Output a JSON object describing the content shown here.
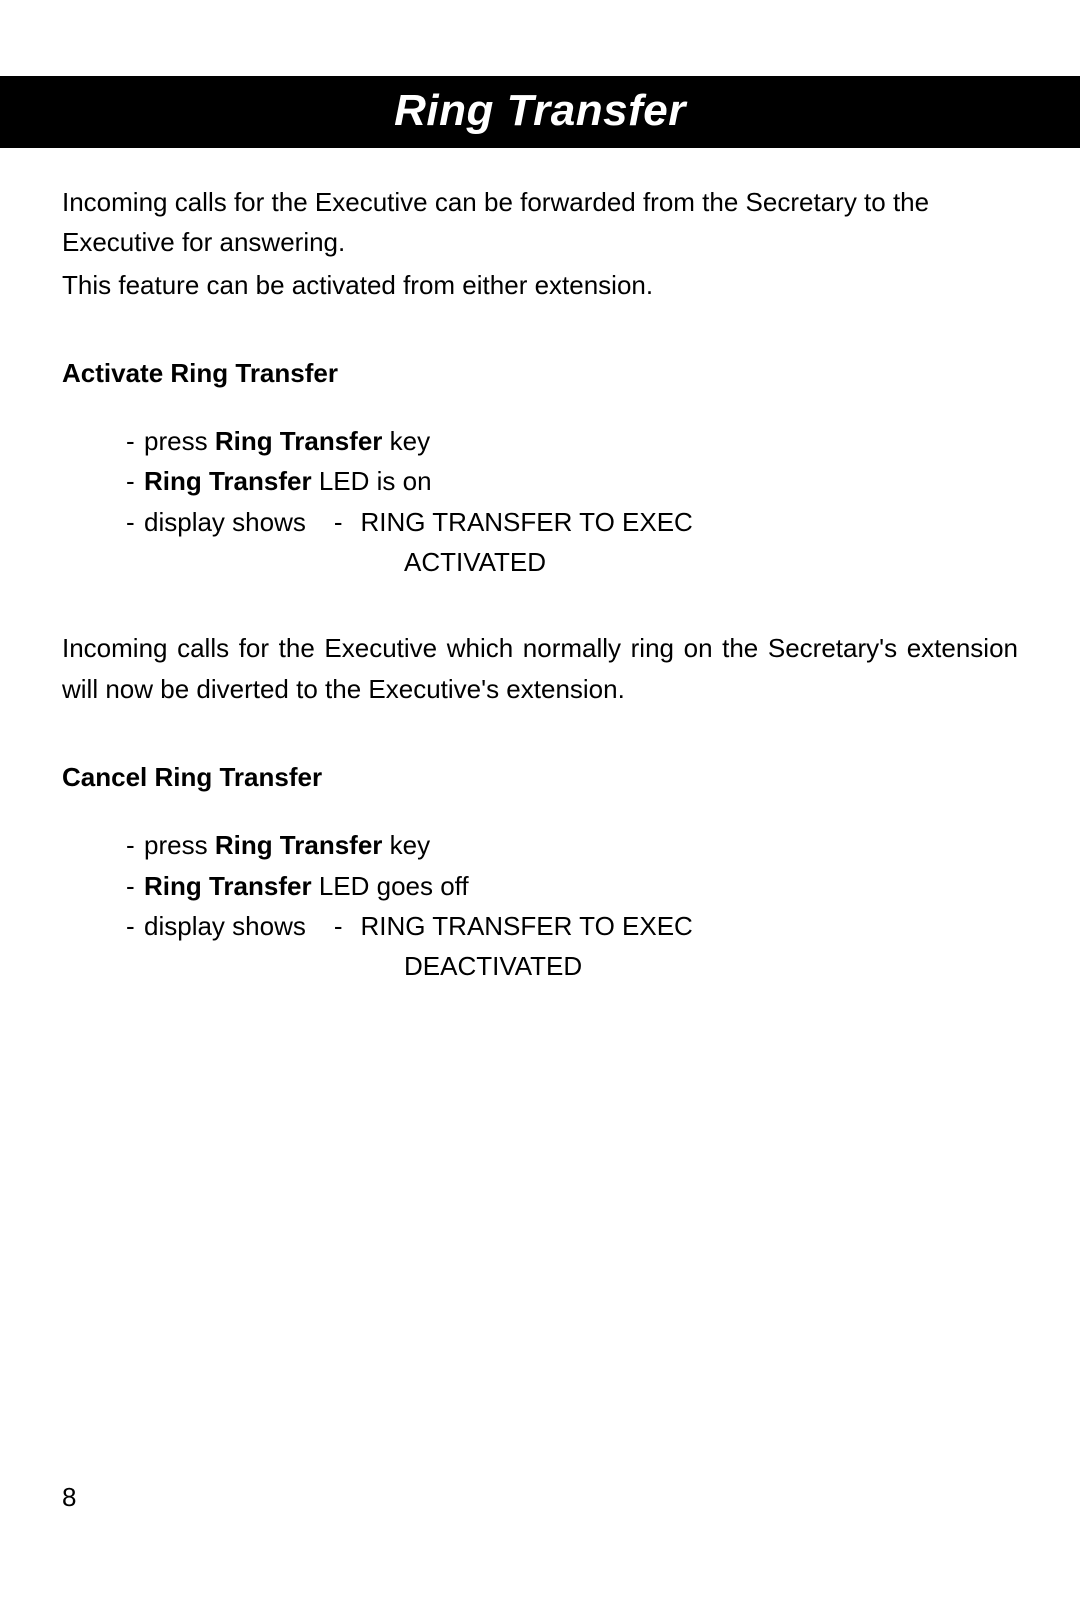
{
  "title": "Ring Transfer",
  "intro_line1": "Incoming calls for the Executive can be forwarded from the Secretary to the Executive for answering.",
  "intro_line2": "This feature can be activated from either extension.",
  "activate": {
    "heading": "Activate Ring Transfer",
    "step1_pre": "press ",
    "step1_bold": "Ring Transfer",
    "step1_post": " key",
    "step2_bold": "Ring Transfer",
    "step2_post": " LED is on",
    "step3_label": "display shows",
    "step3_sep": "-",
    "step3_line1": "RING TRANSFER TO EXEC",
    "step3_line2": "ACTIVATED"
  },
  "mid_para": "Incoming calls for the Executive which normally ring on the Secretary's extension will now be diverted to the Executive's extension.",
  "cancel": {
    "heading": "Cancel Ring Transfer",
    "step1_pre": "press ",
    "step1_bold": "Ring Transfer",
    "step1_post": " key",
    "step2_bold": "Ring Transfer",
    "step2_post": " LED goes off",
    "step3_label": "display shows",
    "step3_sep": "-",
    "step3_line1": "RING TRANSFER TO EXEC",
    "step3_line2": "DEACTIVATED"
  },
  "page_number": "8",
  "bullet": "-"
}
